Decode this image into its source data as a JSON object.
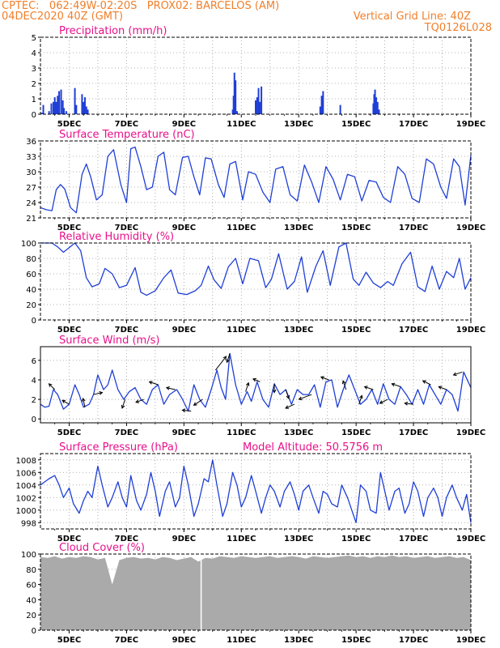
{
  "header": {
    "line1_left": "CPTEC:   062:49W-02:20S   PROX02: BARCELOS (AM)",
    "line2_left": "04DEC2020 40Z (GMT)",
    "line2_right": "Vertical Grid Line: 40Z",
    "line3_right": "TQ0126L028",
    "color": "#f07f2a"
  },
  "colors": {
    "title": "#e8108a",
    "series": "#1f3fd6",
    "cloud": "#aaaaaa",
    "frame": "#000000",
    "grid": "#9a9a9a"
  },
  "x_axis": {
    "range_days": [
      4.0,
      19.0
    ],
    "tick_days": [
      5,
      7,
      9,
      11,
      13,
      15,
      17,
      19
    ],
    "tick_labels": [
      "5DEC",
      "7DEC",
      "9DEC",
      "11DEC",
      "13DEC",
      "15DEC",
      "17DEC",
      "19DEC"
    ],
    "minor_day_step": 1
  },
  "chart_data": [
    {
      "type": "bar",
      "title": "Precipitation (mm/h)",
      "ylim": [
        0,
        5
      ],
      "yticks": [
        0,
        1,
        2,
        3,
        4,
        5
      ],
      "x": [
        4.05,
        4.1,
        4.3,
        4.38,
        4.45,
        4.5,
        4.55,
        4.6,
        4.65,
        4.72,
        4.78,
        4.82,
        4.9,
        5.2,
        5.25,
        5.45,
        5.5,
        5.55,
        5.6,
        5.65,
        10.7,
        10.73,
        10.76,
        10.8,
        10.85,
        11.5,
        11.55,
        11.6,
        11.65,
        11.7,
        13.75,
        13.8,
        13.85,
        14.45,
        15.6,
        15.63,
        15.66,
        15.7,
        15.75,
        15.8
      ],
      "values": [
        0.1,
        0.6,
        0.2,
        0.7,
        0.8,
        1.1,
        0.8,
        1.2,
        1.5,
        1.6,
        0.9,
        0.4,
        0.2,
        1.7,
        0.6,
        1.3,
        0.8,
        1.1,
        0.5,
        0.3,
        0.3,
        1.2,
        2.7,
        2.2,
        0.2,
        0.9,
        1.1,
        1.7,
        0.8,
        1.8,
        0.5,
        1.2,
        1.5,
        0.6,
        0.7,
        1.3,
        1.6,
        1.1,
        0.8,
        0.3
      ]
    },
    {
      "type": "line",
      "title": "Surface Temperature (nC)",
      "ylim": [
        21,
        36
      ],
      "yticks": [
        21,
        24,
        27,
        30,
        33,
        36
      ],
      "x": [
        4.0,
        4.2,
        4.4,
        4.55,
        4.7,
        4.85,
        5.05,
        5.25,
        5.45,
        5.6,
        5.75,
        5.95,
        6.15,
        6.35,
        6.55,
        6.8,
        7.0,
        7.15,
        7.3,
        7.5,
        7.7,
        7.9,
        8.1,
        8.3,
        8.5,
        8.7,
        8.95,
        9.15,
        9.35,
        9.55,
        9.75,
        9.95,
        10.2,
        10.4,
        10.6,
        10.8,
        11.05,
        11.25,
        11.5,
        11.75,
        12.0,
        12.2,
        12.45,
        12.7,
        12.95,
        13.2,
        13.45,
        13.7,
        13.95,
        14.2,
        14.45,
        14.7,
        14.95,
        15.2,
        15.45,
        15.7,
        15.95,
        16.2,
        16.45,
        16.7,
        16.95,
        17.2,
        17.45,
        17.7,
        17.95,
        18.15,
        18.4,
        18.6,
        18.8,
        19.0
      ],
      "values": [
        23.0,
        22.6,
        22.4,
        26.5,
        27.5,
        26.6,
        23.0,
        22.0,
        29.5,
        31.5,
        29.0,
        24.5,
        25.5,
        33.0,
        34.3,
        27.5,
        24.0,
        34.5,
        34.8,
        31.0,
        26.5,
        27.0,
        33.0,
        33.8,
        26.5,
        25.5,
        32.8,
        33.0,
        29.0,
        25.5,
        32.7,
        32.5,
        27.5,
        25.0,
        31.5,
        32.0,
        24.5,
        30.0,
        29.5,
        26.0,
        24.0,
        30.5,
        31.0,
        25.5,
        24.3,
        31.3,
        28.0,
        24.0,
        31.0,
        28.5,
        24.5,
        29.5,
        29.0,
        24.3,
        28.3,
        28.0,
        25.0,
        24.0,
        31.0,
        29.5,
        24.8,
        24.0,
        32.5,
        31.5,
        27.0,
        24.8,
        32.5,
        31.0,
        23.5,
        33.2
      ]
    },
    {
      "type": "line",
      "title": "Relative Humidity (%)",
      "ylim": [
        0,
        100
      ],
      "yticks": [
        0,
        20,
        40,
        60,
        80,
        100
      ],
      "x": [
        4.0,
        4.2,
        4.4,
        4.6,
        4.8,
        5.0,
        5.2,
        5.4,
        5.6,
        5.8,
        6.05,
        6.25,
        6.5,
        6.75,
        7.0,
        7.3,
        7.5,
        7.7,
        8.0,
        8.3,
        8.55,
        8.8,
        9.1,
        9.4,
        9.6,
        9.85,
        10.05,
        10.3,
        10.55,
        10.8,
        11.05,
        11.3,
        11.6,
        11.85,
        12.05,
        12.3,
        12.6,
        12.85,
        13.1,
        13.3,
        13.6,
        13.85,
        14.1,
        14.4,
        14.65,
        14.9,
        15.1,
        15.35,
        15.6,
        15.85,
        16.1,
        16.3,
        16.6,
        16.9,
        17.15,
        17.4,
        17.65,
        17.9,
        18.15,
        18.4,
        18.6,
        18.8,
        19.0
      ],
      "values": [
        100,
        100,
        100,
        95,
        88,
        94,
        100,
        90,
        55,
        43,
        47,
        67,
        60,
        42,
        45,
        68,
        36,
        32,
        38,
        55,
        65,
        35,
        33,
        38,
        45,
        70,
        52,
        41,
        69,
        80,
        47,
        80,
        77,
        42,
        53,
        86,
        40,
        50,
        82,
        36,
        70,
        90,
        45,
        95,
        100,
        53,
        45,
        62,
        48,
        42,
        50,
        45,
        73,
        88,
        43,
        37,
        70,
        40,
        63,
        55,
        80,
        40,
        55
      ]
    },
    {
      "type": "line",
      "title": "Surface Wind (m/s)",
      "ylim": [
        -0.4,
        7.4
      ],
      "yticks": [
        0,
        2,
        4,
        6
      ],
      "x": [
        4.0,
        4.15,
        4.3,
        4.45,
        4.6,
        4.8,
        5.0,
        5.2,
        5.35,
        5.5,
        5.7,
        5.85,
        6.0,
        6.2,
        6.35,
        6.5,
        6.7,
        6.9,
        7.1,
        7.3,
        7.5,
        7.7,
        7.9,
        8.1,
        8.3,
        8.5,
        8.75,
        8.95,
        9.15,
        9.35,
        9.55,
        9.75,
        9.95,
        10.15,
        10.3,
        10.45,
        10.6,
        10.8,
        11.0,
        11.2,
        11.35,
        11.55,
        11.75,
        11.95,
        12.15,
        12.35,
        12.55,
        12.75,
        12.95,
        13.15,
        13.35,
        13.55,
        13.75,
        13.95,
        14.15,
        14.35,
        14.55,
        14.75,
        14.95,
        15.15,
        15.35,
        15.55,
        15.75,
        15.95,
        16.15,
        16.35,
        16.55,
        16.75,
        16.95,
        17.15,
        17.35,
        17.55,
        17.75,
        17.95,
        18.15,
        18.35,
        18.55,
        18.75,
        19.0
      ],
      "values": [
        1.5,
        1.2,
        1.3,
        3.0,
        2.5,
        1.0,
        1.5,
        3.5,
        2.5,
        1.2,
        1.5,
        2.5,
        4.5,
        3.0,
        3.5,
        5.0,
        3.0,
        2.0,
        2.8,
        3.2,
        2.0,
        1.5,
        3.0,
        3.5,
        1.5,
        2.5,
        3.0,
        2.0,
        0.8,
        3.5,
        2.0,
        1.2,
        3.0,
        5.0,
        3.2,
        2.0,
        6.7,
        3.5,
        1.5,
        2.8,
        1.8,
        3.8,
        2.0,
        1.2,
        3.6,
        2.5,
        3.0,
        1.5,
        3.0,
        2.5,
        2.5,
        3.5,
        1.2,
        3.8,
        4.0,
        1.2,
        3.0,
        4.5,
        3.0,
        1.5,
        2.0,
        3.0,
        1.5,
        3.6,
        2.0,
        1.5,
        3.3,
        2.5,
        1.5,
        3.0,
        1.5,
        3.5,
        2.5,
        1.5,
        3.0,
        2.5,
        0.8,
        4.8,
        3.2
      ],
      "arrows": [
        {
          "x": 4.5,
          "dx": -0.6,
          "dy": 0.6
        },
        {
          "x": 5.0,
          "dx": -0.7,
          "dy": 0.4
        },
        {
          "x": 5.55,
          "dx": -0.2,
          "dy": 0.9
        },
        {
          "x": 5.85,
          "dx": 0.9,
          "dy": 0.2
        },
        {
          "x": 6.95,
          "dx": -0.3,
          "dy": -0.9
        },
        {
          "x": 7.6,
          "dx": -0.8,
          "dy": -0.3
        },
        {
          "x": 8.1,
          "dx": -0.9,
          "dy": 0.3
        },
        {
          "x": 8.7,
          "dx": -0.9,
          "dy": 0.2
        },
        {
          "x": 9.25,
          "dx": -0.9,
          "dy": 0.1
        },
        {
          "x": 9.65,
          "dx": -0.9,
          "dy": -0.6
        },
        {
          "x": 10.1,
          "dx": 1.1,
          "dy": 1.4
        },
        {
          "x": 10.6,
          "dx": -0.3,
          "dy": -0.9
        },
        {
          "x": 11.15,
          "dx": 0.3,
          "dy": 0.9
        },
        {
          "x": 11.65,
          "dx": -0.7,
          "dy": 0.3
        },
        {
          "x": 12.15,
          "dx": 0.0,
          "dy": -0.9
        },
        {
          "x": 12.55,
          "dx": 0.3,
          "dy": -0.9
        },
        {
          "x": 12.85,
          "dx": -0.9,
          "dy": -0.4
        },
        {
          "x": 13.45,
          "dx": -1.3,
          "dy": -0.5
        },
        {
          "x": 14.05,
          "dx": -0.8,
          "dy": 0.3
        },
        {
          "x": 14.65,
          "dx": -0.3,
          "dy": 0.9
        },
        {
          "x": 15.1,
          "dx": 0.3,
          "dy": 0.9
        },
        {
          "x": 15.6,
          "dx": -0.9,
          "dy": 0.3
        },
        {
          "x": 16.1,
          "dx": -0.8,
          "dy": -0.4
        },
        {
          "x": 16.55,
          "dx": -0.9,
          "dy": 0.3
        },
        {
          "x": 17.0,
          "dx": -0.9,
          "dy": 0.1
        },
        {
          "x": 17.6,
          "dx": -0.8,
          "dy": 0.4
        },
        {
          "x": 18.15,
          "dx": -0.8,
          "dy": 0.3
        },
        {
          "x": 18.7,
          "dx": -0.9,
          "dy": -0.3
        }
      ]
    },
    {
      "type": "line",
      "title": "Surface Pressure (hPa)",
      "annotation": "Model Altitude: 50.5756 m",
      "ylim": [
        997,
        1009
      ],
      "yticks": [
        998,
        1000,
        1002,
        1004,
        1006,
        1008
      ],
      "x": [
        4.0,
        4.15,
        4.3,
        4.5,
        4.65,
        4.8,
        5.0,
        5.15,
        5.35,
        5.5,
        5.65,
        5.8,
        6.0,
        6.15,
        6.35,
        6.5,
        6.7,
        6.85,
        7.0,
        7.15,
        7.35,
        7.5,
        7.7,
        7.85,
        8.0,
        8.15,
        8.35,
        8.5,
        8.7,
        8.85,
        9.0,
        9.15,
        9.35,
        9.5,
        9.7,
        9.85,
        10.0,
        10.15,
        10.35,
        10.5,
        10.7,
        10.85,
        11.0,
        11.15,
        11.35,
        11.5,
        11.7,
        11.85,
        12.0,
        12.15,
        12.35,
        12.5,
        12.7,
        12.85,
        13.0,
        13.15,
        13.35,
        13.5,
        13.7,
        13.85,
        14.0,
        14.15,
        14.35,
        14.5,
        14.7,
        14.85,
        15.0,
        15.15,
        15.35,
        15.5,
        15.7,
        15.85,
        16.0,
        16.15,
        16.35,
        16.5,
        16.7,
        16.85,
        17.0,
        17.15,
        17.35,
        17.5,
        17.7,
        17.85,
        18.0,
        18.15,
        18.35,
        18.5,
        18.7,
        18.85,
        19.0
      ],
      "values": [
        1004.0,
        1004.5,
        1005.0,
        1005.5,
        1004.0,
        1002.0,
        1003.5,
        1001.0,
        999.5,
        1001.5,
        1003.0,
        1002.0,
        1007.0,
        1004.0,
        1000.5,
        1002.0,
        1004.5,
        1002.0,
        1000.5,
        1005.5,
        1001.5,
        1000.0,
        1002.5,
        1006.0,
        1003.0,
        999.0,
        1003.0,
        1004.5,
        1000.5,
        1002.0,
        1007.0,
        1004.0,
        999.0,
        1001.0,
        1005.0,
        1004.5,
        1008.0,
        1004.0,
        999.0,
        1001.0,
        1006.0,
        1004.0,
        1000.5,
        1002.0,
        1005.5,
        1003.0,
        999.5,
        1002.0,
        1004.0,
        1003.0,
        1000.5,
        1003.0,
        1004.5,
        1002.5,
        1000.0,
        1003.0,
        1004.0,
        1002.0,
        999.5,
        1003.0,
        1002.5,
        1001.0,
        1000.5,
        1004.0,
        1002.0,
        1000.0,
        998.0,
        1004.0,
        1003.0,
        1000.0,
        999.5,
        1006.0,
        1003.0,
        1000.0,
        1003.0,
        1003.5,
        999.5,
        1001.0,
        1004.5,
        1003.0,
        999.0,
        1002.0,
        1003.5,
        1002.0,
        999.0,
        1002.0,
        1004.0,
        1002.0,
        1000.0,
        1002.5,
        998.0
      ]
    },
    {
      "type": "area",
      "title": "Cloud Cover (%)",
      "ylim": [
        0,
        100
      ],
      "yticks": [
        0,
        20,
        40,
        60,
        80,
        100
      ],
      "x": [
        4.0,
        4.25,
        4.5,
        4.75,
        5.0,
        5.25,
        5.5,
        5.75,
        6.0,
        6.25,
        6.5,
        6.75,
        7.0,
        7.25,
        7.5,
        7.75,
        8.0,
        8.25,
        8.5,
        8.75,
        9.0,
        9.25,
        9.5,
        9.75,
        10.0,
        10.25,
        10.5,
        10.75,
        11.0,
        11.25,
        11.5,
        11.75,
        12.0,
        12.25,
        12.5,
        12.75,
        13.0,
        13.25,
        13.5,
        13.75,
        14.0,
        14.25,
        14.5,
        14.75,
        15.0,
        15.25,
        15.5,
        15.75,
        16.0,
        16.25,
        16.5,
        16.75,
        17.0,
        17.25,
        17.5,
        17.75,
        18.0,
        18.25,
        18.5,
        18.75,
        19.0
      ],
      "values": [
        96,
        95,
        97,
        94,
        96,
        95,
        97,
        96,
        93,
        95,
        60,
        92,
        95,
        96,
        94,
        95,
        93,
        96,
        95,
        92,
        94,
        96,
        90,
        95,
        94,
        97,
        96,
        95,
        97,
        96,
        95,
        96,
        97,
        95,
        96,
        97,
        96,
        94,
        97,
        96,
        95,
        96,
        97,
        98,
        96,
        97,
        95,
        97,
        96,
        98,
        96,
        97,
        95,
        96,
        97,
        95,
        96,
        97,
        95,
        96,
        92
      ]
    }
  ]
}
